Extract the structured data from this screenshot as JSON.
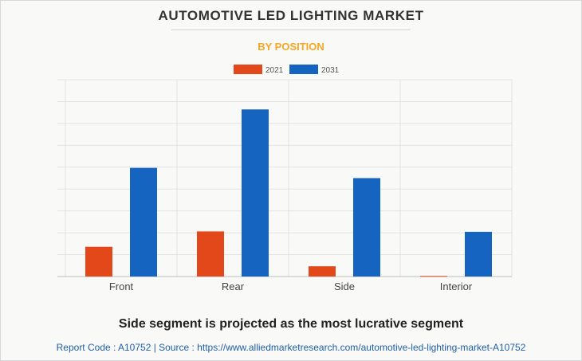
{
  "title": "AUTOMOTIVE LED LIGHTING MARKET",
  "subtitle": "BY POSITION",
  "headline": "Side segment is projected as the most lucrative segment",
  "source": "Report Code : A10752  |  Source : https://www.alliedmarketresearch.com/automotive-led-lighting-market-A10752",
  "colors": {
    "s2021": "#e3481a",
    "s2031": "#1565c0",
    "subtitle": "#f5a623",
    "source": "#1f5fa8"
  },
  "chart_data": {
    "type": "bar",
    "title": "",
    "xlabel": "",
    "ylabel": "",
    "categories": [
      "Front",
      "Rear",
      "Side",
      "Interior"
    ],
    "series": [
      {
        "name": "2021",
        "values": [
          1.45,
          2.2,
          0.5,
          0.03
        ]
      },
      {
        "name": "2031",
        "values": [
          5.3,
          8.15,
          4.8,
          2.18
        ]
      }
    ],
    "ylim": [
      0,
      9.6
    ],
    "grid": true,
    "legend": "top-center"
  }
}
